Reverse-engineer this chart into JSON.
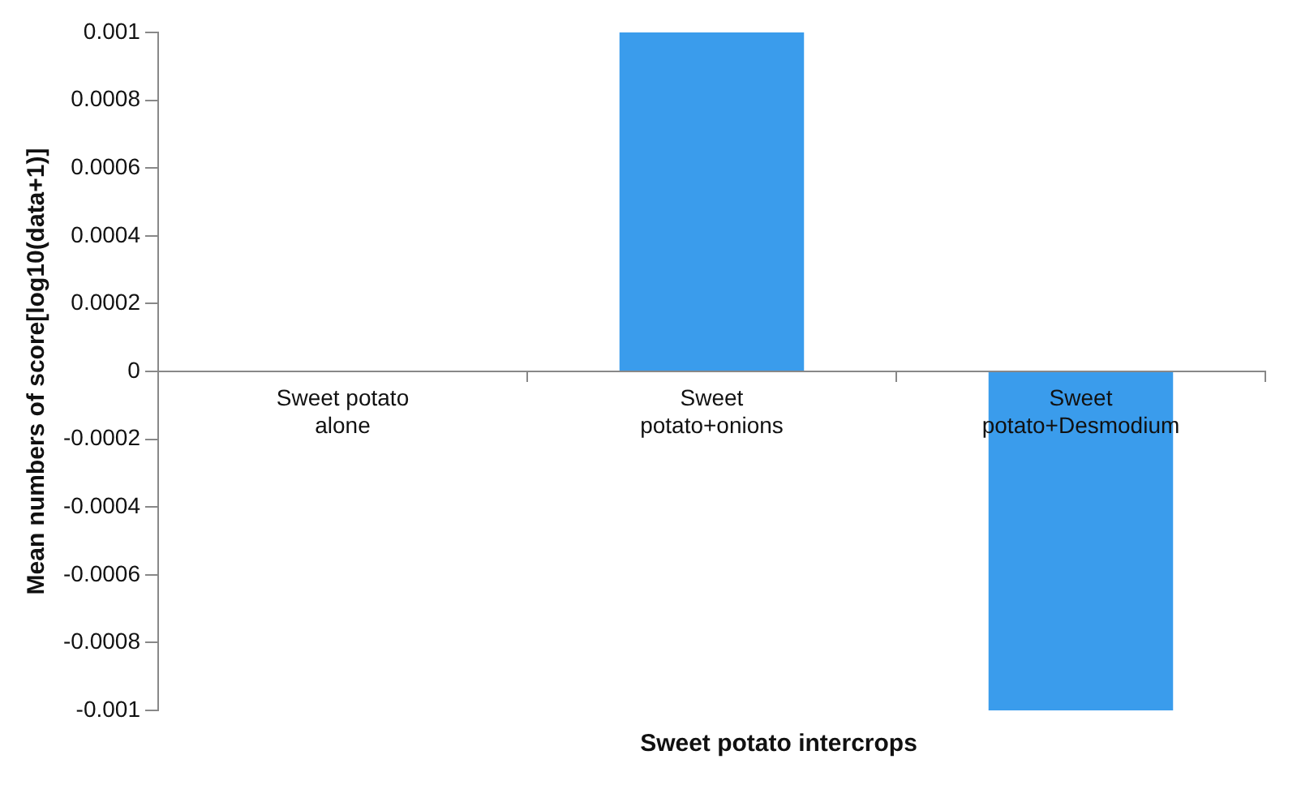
{
  "chart_data": {
    "type": "bar",
    "xlabel": "Sweet potato intercrops",
    "ylabel": "Mean numbers of score[log10(data+1)]",
    "categories": [
      "Sweet potato alone",
      "Sweet potato+onions",
      "Sweet potato+Desmodium"
    ],
    "values": [
      0,
      0.001,
      -0.001
    ],
    "color": "#3a9cec",
    "ylim": [
      -0.001,
      0.001
    ],
    "yticks": [
      -0.001,
      -0.0008,
      -0.0006,
      -0.0004,
      -0.0002,
      0,
      0.0002,
      0.0004,
      0.0006,
      0.0008,
      0.001
    ],
    "grid": false,
    "legend": false
  }
}
